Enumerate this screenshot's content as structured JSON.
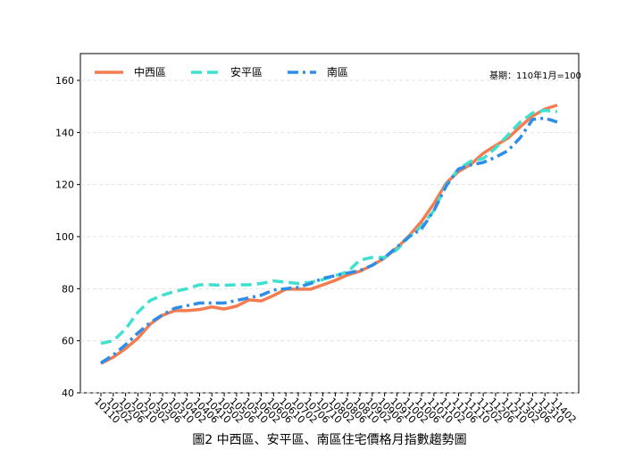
{
  "chart_data": {
    "type": "line",
    "title": "圖2 中西區、安平區、南區住宅價格月指數趨勢圖",
    "annotation": "基期：110年1月=100",
    "categories": [
      "10110",
      "10202",
      "10206",
      "10210",
      "10302",
      "10306",
      "10310",
      "10402",
      "10406",
      "10410",
      "10502",
      "10506",
      "10510",
      "10602",
      "10606",
      "10610",
      "10702",
      "10706",
      "10710",
      "10802",
      "10806",
      "10810",
      "10902",
      "10906",
      "10910",
      "11002",
      "11006",
      "11010",
      "11102",
      "11106",
      "11110",
      "11202",
      "11206",
      "11210",
      "11302",
      "11306",
      "11310",
      "11402"
    ],
    "series": [
      {
        "name": "中西區",
        "color": "#f47c50",
        "linestyle": "solid",
        "values": [
          51.3,
          53.7,
          57,
          61,
          66.4,
          69.8,
          71.6,
          71.6,
          72,
          73,
          72.2,
          73.3,
          75.7,
          75.3,
          77.4,
          79.8,
          79.8,
          79.8,
          81.5,
          83.2,
          85.3,
          86.7,
          89,
          91.8,
          95.6,
          100.4,
          105.9,
          112.7,
          120.6,
          125,
          127.8,
          132,
          135,
          137.8,
          142.2,
          146.3,
          149,
          150.5
        ]
      },
      {
        "name": "安平區",
        "color": "#40e0d0",
        "linestyle": "dashed",
        "values": [
          59,
          60,
          64.5,
          71,
          75.5,
          77.5,
          79,
          80,
          81.5,
          81.5,
          81.3,
          81.5,
          81.5,
          82,
          83,
          82.5,
          82,
          82.5,
          83.5,
          85,
          86.5,
          91,
          92,
          92,
          95,
          100,
          104,
          110,
          120,
          126,
          129,
          130,
          134,
          139,
          144,
          147.5,
          148.5,
          148
        ]
      },
      {
        "name": "南區",
        "color": "#2e8de8",
        "linestyle": "dashdot",
        "values": [
          51.5,
          54.5,
          58.5,
          63,
          67,
          70,
          72.5,
          73.5,
          74.5,
          74.5,
          74.5,
          75.5,
          76.5,
          77.5,
          79.5,
          80,
          80.5,
          82,
          84,
          85,
          86,
          87,
          89,
          92,
          96,
          100,
          103,
          110,
          119.5,
          126,
          127.5,
          128.5,
          130.5,
          133,
          138,
          145,
          145.5,
          144
        ]
      }
    ],
    "ylim": [
      40,
      170.3
    ],
    "yticks": [
      40,
      60,
      80,
      100,
      120,
      140,
      160
    ],
    "grid": true,
    "legend": "upper left"
  }
}
